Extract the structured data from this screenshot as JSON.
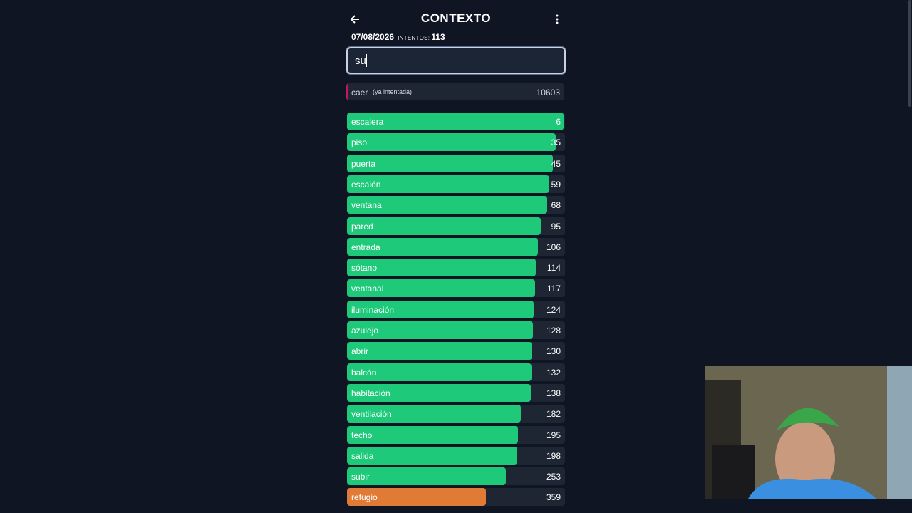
{
  "header": {
    "title": "CONTEXTO",
    "date": "07/08/2026",
    "attempts_label": "intentos:",
    "attempts": 113
  },
  "input": {
    "value": "su"
  },
  "last_guess": {
    "word": "caer",
    "note": "(ya intentada)",
    "rank": 10603
  },
  "guesses": [
    {
      "word": "escalera",
      "rank": 6
    },
    {
      "word": "piso",
      "rank": 35
    },
    {
      "word": "puerta",
      "rank": 45
    },
    {
      "word": "escalón",
      "rank": 59
    },
    {
      "word": "ventana",
      "rank": 68
    },
    {
      "word": "pared",
      "rank": 95
    },
    {
      "word": "entrada",
      "rank": 106
    },
    {
      "word": "sótano",
      "rank": 114
    },
    {
      "word": "ventanal",
      "rank": 117
    },
    {
      "word": "iluminación",
      "rank": 124
    },
    {
      "word": "azulejo",
      "rank": 128
    },
    {
      "word": "abrir",
      "rank": 130
    },
    {
      "word": "balcón",
      "rank": 132
    },
    {
      "word": "habitación",
      "rank": 138
    },
    {
      "word": "ventilación",
      "rank": 182
    },
    {
      "word": "techo",
      "rank": 195
    },
    {
      "word": "salida",
      "rank": 198
    },
    {
      "word": "subir",
      "rank": 253
    },
    {
      "word": "refugio",
      "rank": 359
    }
  ]
}
